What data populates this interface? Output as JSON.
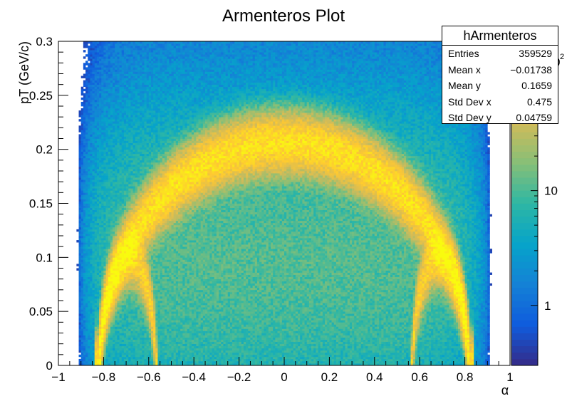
{
  "chart_data": {
    "type": "heatmap",
    "title": "Armenteros Plot",
    "xlabel": "α",
    "ylabel": "pT (GeV/c)",
    "xlim": [
      -1,
      1
    ],
    "ylim": [
      0,
      0.3
    ],
    "x_ticks": [
      "−1",
      "−0.8",
      "−0.6",
      "−0.4",
      "−0.2",
      "0",
      "0.2",
      "0.4",
      "0.6",
      "0.8",
      "1"
    ],
    "x_tick_values": [
      -1,
      -0.8,
      -0.6,
      -0.4,
      -0.2,
      0,
      0.2,
      0.4,
      0.6,
      0.8,
      1
    ],
    "y_ticks": [
      "0",
      "0.05",
      "0.1",
      "0.15",
      "0.2",
      "0.25",
      "0.3"
    ],
    "y_tick_values": [
      0,
      0.05,
      0.1,
      0.15,
      0.2,
      0.25,
      0.3
    ],
    "color_scale": "log",
    "colorbar_ticks": [
      "1",
      "10"
    ],
    "colorbar_tick_values": [
      1,
      10
    ],
    "colorbar_range": [
      0.3,
      200
    ],
    "colorbar_top_label_partial": "0",
    "colorbar_top_label_superscript": "2",
    "palette": [
      "#352a87",
      "#0f5cdd",
      "#1481d6",
      "#06a4ca",
      "#2eb7a4",
      "#87bf77",
      "#d1bb59",
      "#fec832",
      "#f9fb0e"
    ],
    "grid": false,
    "legend": "none",
    "bands": [
      {
        "description": "K0S ellipse",
        "center_alpha": 0.0,
        "half_width_alpha": 0.82,
        "peak_pT": 0.206
      },
      {
        "description": "Lambda arc",
        "center_alpha": 0.69,
        "half_width_alpha": 0.12,
        "peak_pT": 0.1
      },
      {
        "description": "Anti-Lambda arc",
        "center_alpha": -0.69,
        "half_width_alpha": 0.12,
        "peak_pT": 0.1
      }
    ]
  },
  "stats": {
    "title": "hArmenteros",
    "rows": [
      {
        "label": "Entries",
        "value": "359529"
      },
      {
        "label": "Mean x",
        "value": "−0.01738"
      },
      {
        "label": "Mean y",
        "value": "0.1659"
      },
      {
        "label": "Std Dev x",
        "value": "0.475"
      },
      {
        "label": "Std Dev y",
        "value": "0.04759"
      }
    ]
  }
}
